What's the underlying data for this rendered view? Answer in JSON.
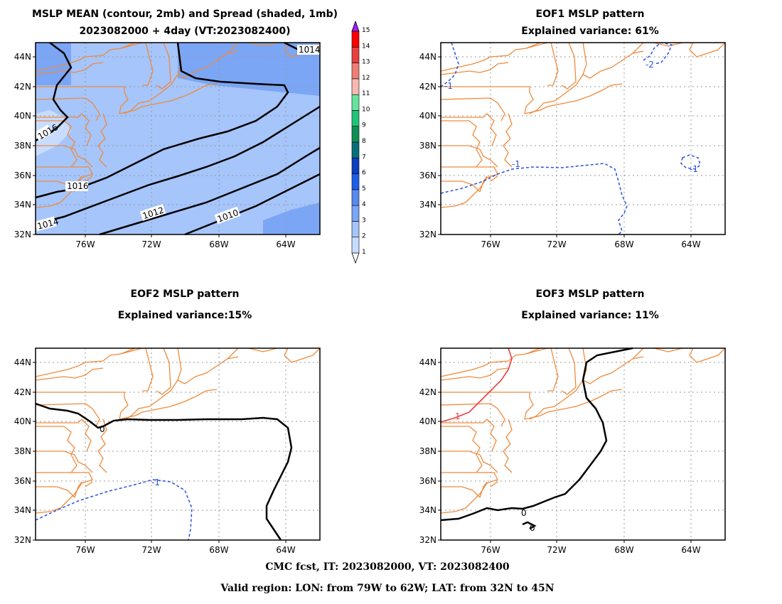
{
  "footer": {
    "line1": "CMC fcst, IT: 2023082000, VT: 2023082400",
    "line2": "Valid region: LON: from 79W to 62W; LAT: from 32N to 45N"
  },
  "colorbar": {
    "labels": [
      "1",
      "2",
      "3",
      "4",
      "5",
      "6",
      "7",
      "8",
      "9",
      "10",
      "11",
      "12",
      "13",
      "14",
      "15"
    ],
    "colors": [
      "#c8dcff",
      "#a5c5fb",
      "#7ba6f5",
      "#5a88ef",
      "#1f5fe6",
      "#0b3fc1",
      "#0a6e78",
      "#0d9055",
      "#23c27b",
      "#66e3a0",
      "#f7b8b0",
      "#ef7d75",
      "#e84040",
      "#ff0000",
      "#ff00d8",
      "#9d20ff"
    ]
  },
  "axes": {
    "lat_labels": [
      "32N",
      "34N",
      "36N",
      "38N",
      "40N",
      "42N",
      "44N"
    ],
    "lon_labels": [
      "76W",
      "72W",
      "68W",
      "64W"
    ]
  },
  "panels": [
    {
      "id": "mslp-mean",
      "title_line1": "MSLP MEAN (contour, 2mb) and Spread (shaded, 1mb)",
      "title_line2": "2023082000 + 4day (VT:2023082400)",
      "contour_labels": [
        "1016",
        "1016",
        "1014",
        "1012",
        "1010",
        "1014"
      ]
    },
    {
      "id": "eof1",
      "title_line1": "EOF1 MSLP pattern",
      "title_line2": "Explained variance: 61%",
      "contour_labels": [
        "-1",
        "-2",
        "-1",
        "-1"
      ]
    },
    {
      "id": "eof2",
      "title_line1": "EOF2 MSLP pattern",
      "title_line2": "Explained variance:15%",
      "contour_labels": [
        "0",
        "-1"
      ]
    },
    {
      "id": "eof3",
      "title_line1": "EOF3 MSLP pattern",
      "title_line2": "Explained variance: 11%",
      "contour_labels": [
        "1",
        "0",
        "0"
      ]
    }
  ]
}
